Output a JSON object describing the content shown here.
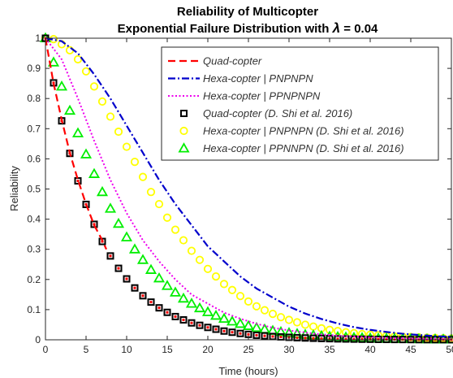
{
  "chart_data": {
    "type": "line",
    "title_line1": "Reliability of Multicopter",
    "title_line2_prefix": "Exponential Failure Distribution with ",
    "title_line2_symbol": "λ",
    "title_line2_suffix": " = 0.04",
    "xlabel": "Time (hours)",
    "ylabel": "Reliability",
    "xlim": [
      0,
      50
    ],
    "ylim": [
      0,
      1
    ],
    "xticks": [
      "0",
      "5",
      "10",
      "15",
      "20",
      "25",
      "30",
      "35",
      "40",
      "45",
      "50"
    ],
    "yticks": [
      "0",
      "0.1",
      "0.2",
      "0.3",
      "0.4",
      "0.5",
      "0.6",
      "0.7",
      "0.8",
      "0.9",
      "1"
    ],
    "grid": false,
    "legend_position": "top-right",
    "series": [
      {
        "name": "Quad-copter",
        "style": "dashed-line",
        "color": "#ff0000",
        "x": [
          0,
          1,
          2,
          3,
          4,
          5,
          6,
          7,
          7.5
        ],
        "y": [
          1,
          0.85,
          0.73,
          0.62,
          0.53,
          0.45,
          0.38,
          0.33,
          0.3
        ]
      },
      {
        "name": "Hexa-copter | PNPNPN",
        "style": "dash-dot-line",
        "color": "#0000cc",
        "x": [
          0,
          2,
          4,
          6,
          8,
          10,
          12,
          14,
          16,
          18,
          20,
          22,
          24,
          26,
          28,
          30,
          32,
          34,
          36,
          38,
          40,
          42,
          44,
          46,
          48,
          50
        ],
        "y": [
          1,
          0.99,
          0.95,
          0.88,
          0.8,
          0.71,
          0.62,
          0.53,
          0.45,
          0.38,
          0.31,
          0.26,
          0.21,
          0.17,
          0.14,
          0.11,
          0.087,
          0.069,
          0.054,
          0.042,
          0.033,
          0.026,
          0.02,
          0.016,
          0.012,
          0.01
        ]
      },
      {
        "name": "Hexa-copter | PPNPNPN",
        "style": "dotted-line",
        "color": "#ee00ee",
        "x": [
          0,
          2,
          4,
          6,
          8,
          10,
          12,
          14,
          16,
          18,
          20,
          22,
          24,
          26,
          28,
          30,
          32,
          34,
          36,
          38,
          40,
          42,
          44,
          46,
          48,
          50
        ],
        "y": [
          1,
          0.93,
          0.8,
          0.66,
          0.53,
          0.42,
          0.33,
          0.26,
          0.2,
          0.15,
          0.12,
          0.09,
          0.07,
          0.053,
          0.04,
          0.031,
          0.024,
          0.018,
          0.014,
          0.011,
          0.008,
          0.006,
          0.005,
          0.004,
          0.003,
          0.002
        ]
      },
      {
        "name": "Quad-copter (D. Shi et al. 2016)",
        "style": "square-markers",
        "color": "#000000",
        "x": [
          0,
          1,
          2,
          3,
          4,
          5,
          6,
          7,
          8,
          9,
          10,
          11,
          12,
          13,
          14,
          15,
          16,
          17,
          18,
          19,
          20,
          21,
          22,
          23,
          24,
          25,
          26,
          27,
          28,
          29,
          30,
          31,
          32,
          33,
          34,
          35,
          36,
          37,
          38,
          39,
          40,
          41,
          42,
          43,
          44,
          45,
          46,
          47,
          48,
          49,
          50
        ],
        "y": [
          1,
          0.852,
          0.726,
          0.618,
          0.527,
          0.449,
          0.383,
          0.326,
          0.278,
          0.237,
          0.202,
          0.172,
          0.146,
          0.125,
          0.106,
          0.091,
          0.077,
          0.066,
          0.056,
          0.048,
          0.041,
          0.035,
          0.029,
          0.025,
          0.021,
          0.018,
          0.015,
          0.013,
          0.011,
          0.0096,
          0.0082,
          0.007,
          0.006,
          0.0051,
          0.0043,
          0.0037,
          0.0031,
          0.0027,
          0.0023,
          0.0019,
          0.0017,
          0.0014,
          0.0012,
          0.001,
          0.0009,
          0.0007,
          0.0006,
          0.0005,
          0.0005,
          0.0004,
          0.0003
        ]
      },
      {
        "name": "Hexa-copter | PNPNPN (D. Shi et al. 2016)",
        "style": "circle-markers",
        "color": "#ffff00",
        "x": [
          0,
          1,
          2,
          3,
          4,
          5,
          6,
          7,
          8,
          9,
          10,
          11,
          12,
          13,
          14,
          15,
          16,
          17,
          18,
          19,
          20,
          21,
          22,
          23,
          24,
          25,
          26,
          27,
          28,
          29,
          30,
          31,
          32,
          33,
          34,
          35,
          36,
          37,
          38,
          39,
          40,
          41,
          42,
          43,
          44,
          45,
          46,
          47,
          48,
          49,
          50
        ],
        "y": [
          1,
          0.997,
          0.98,
          0.96,
          0.93,
          0.89,
          0.84,
          0.79,
          0.74,
          0.69,
          0.64,
          0.59,
          0.54,
          0.49,
          0.45,
          0.405,
          0.365,
          0.33,
          0.295,
          0.265,
          0.235,
          0.21,
          0.185,
          0.165,
          0.145,
          0.127,
          0.111,
          0.098,
          0.086,
          0.075,
          0.066,
          0.058,
          0.05,
          0.044,
          0.038,
          0.033,
          0.029,
          0.025,
          0.022,
          0.019,
          0.017,
          0.015,
          0.013,
          0.011,
          0.01,
          0.009,
          0.008,
          0.007,
          0.006,
          0.005,
          0.004
        ]
      },
      {
        "name": "Hexa-copter | PPNNPN (D. Shi et al. 2016)",
        "style": "triangle-markers",
        "color": "#00ee00",
        "x": [
          0,
          1,
          2,
          3,
          4,
          5,
          6,
          7,
          8,
          9,
          10,
          11,
          12,
          13,
          14,
          15,
          16,
          17,
          18,
          19,
          20,
          21,
          22,
          23,
          24,
          25,
          26,
          27,
          28,
          29,
          30,
          31,
          32,
          33,
          34,
          35,
          36,
          37,
          38,
          39,
          40,
          41,
          42,
          43,
          44,
          45,
          46,
          47,
          48,
          49,
          50
        ],
        "y": [
          1,
          0.92,
          0.84,
          0.76,
          0.685,
          0.615,
          0.55,
          0.49,
          0.435,
          0.385,
          0.34,
          0.3,
          0.265,
          0.232,
          0.204,
          0.179,
          0.157,
          0.137,
          0.12,
          0.105,
          0.092,
          0.08,
          0.07,
          0.061,
          0.053,
          0.046,
          0.04,
          0.035,
          0.03,
          0.026,
          0.023,
          0.02,
          0.017,
          0.015,
          0.013,
          0.011,
          0.0098,
          0.0085,
          0.0074,
          0.0064,
          0.0056,
          0.0048,
          0.0042,
          0.0036,
          0.0031,
          0.0027,
          0.0024,
          0.002,
          0.0018,
          0.0015,
          0.0013
        ]
      }
    ]
  }
}
